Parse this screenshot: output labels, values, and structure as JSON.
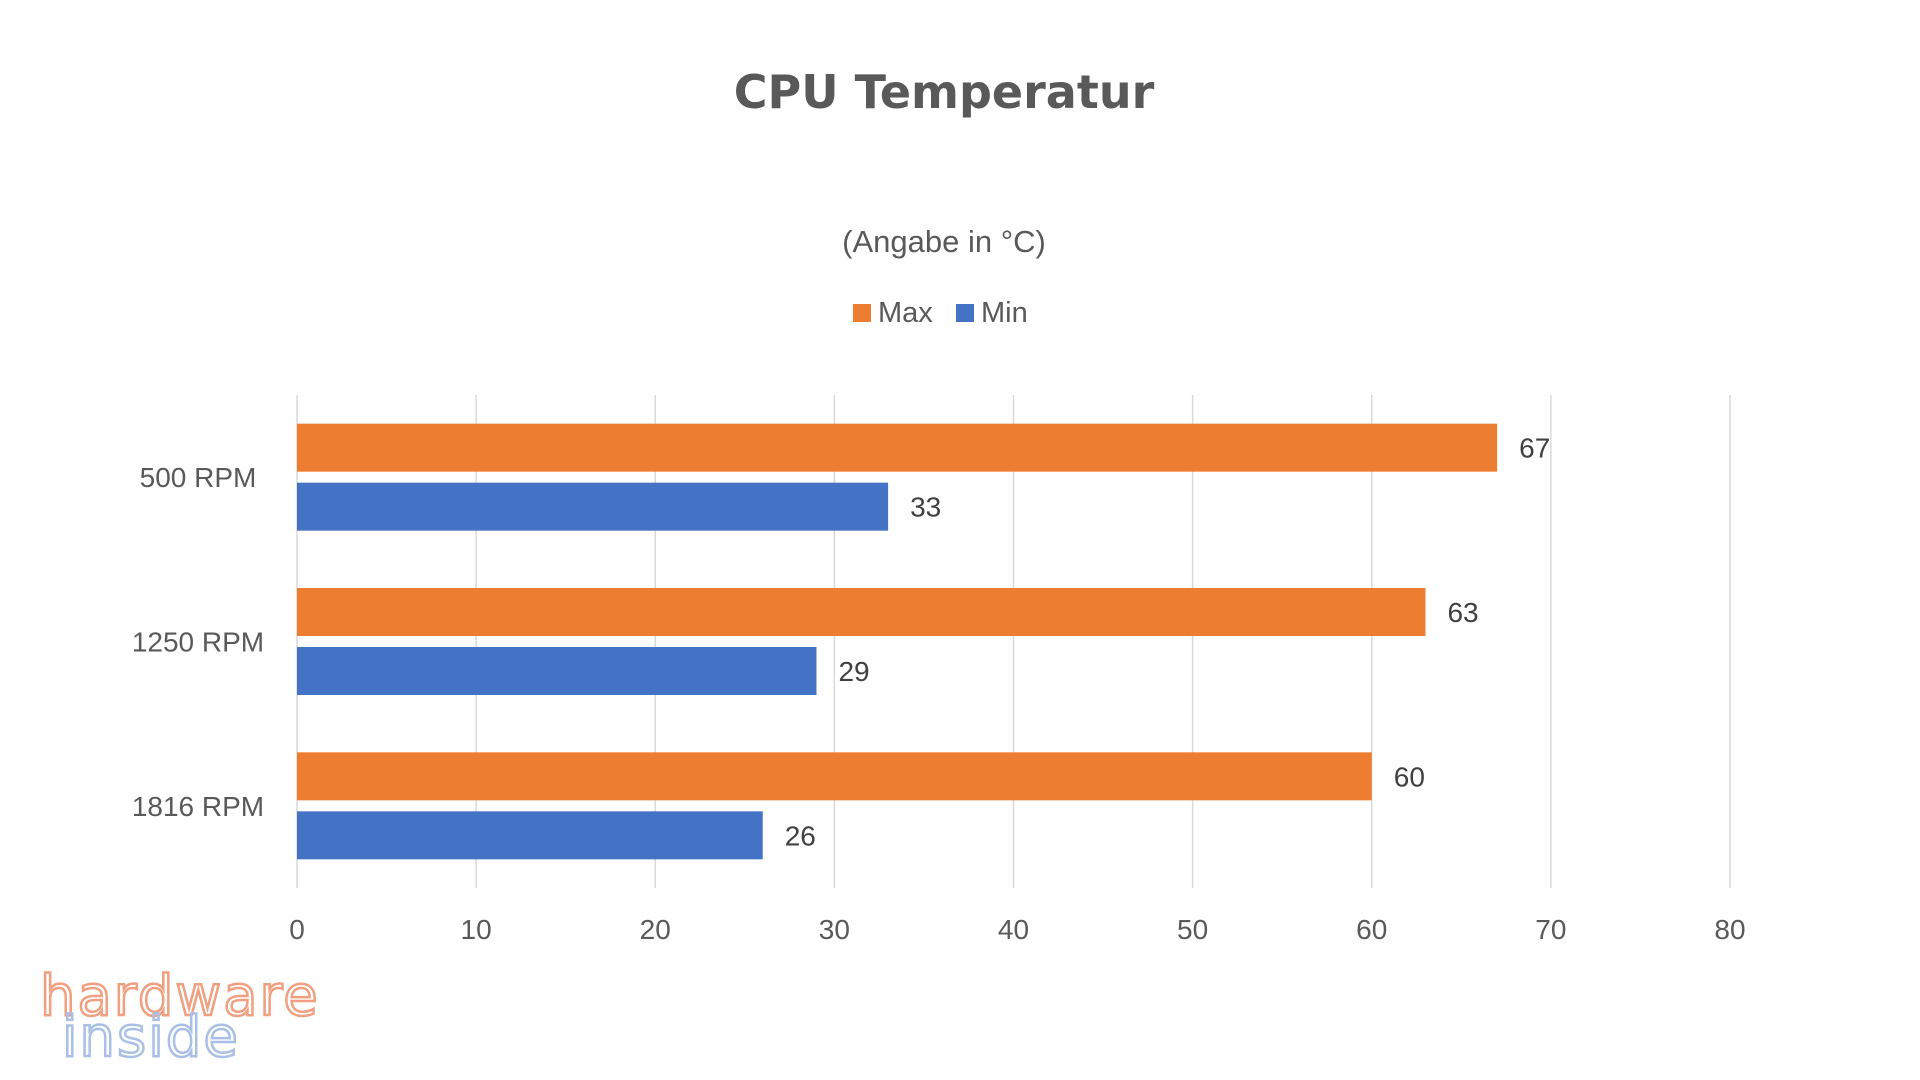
{
  "chart_data": {
    "type": "bar",
    "orientation": "horizontal",
    "title": "CPU Temperatur",
    "subtitle": "(Angabe in °C)",
    "categories": [
      "500 RPM",
      "1250 RPM",
      "1816 RPM"
    ],
    "series": [
      {
        "name": "Max",
        "values": [
          67,
          63,
          60
        ],
        "color": "#ED7D31"
      },
      {
        "name": "Min",
        "values": [
          33,
          29,
          26
        ],
        "color": "#4472C4"
      }
    ],
    "xlim": [
      0,
      80
    ],
    "x_ticks": [
      0,
      10,
      20,
      30,
      40,
      50,
      60,
      70,
      80
    ],
    "grid": true,
    "legend_position": "top-center",
    "data_labels": true
  },
  "watermark": {
    "line1": "hardware",
    "line2": "inside",
    "colors": [
      "#F0A080",
      "#A9BFE6"
    ]
  }
}
